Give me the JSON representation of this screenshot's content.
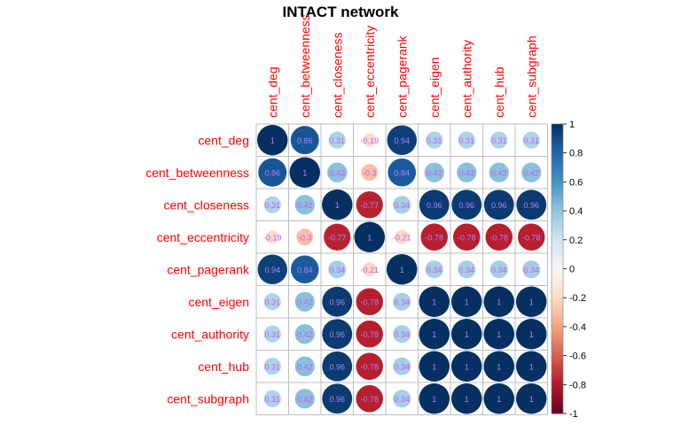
{
  "chart_data": {
    "type": "heatmap",
    "title": "INTACT network",
    "variables": [
      "cent_deg",
      "cent_betweenness",
      "cent_closeness",
      "cent_eccentricity",
      "cent_pagerank",
      "cent_eigen",
      "cent_authority",
      "cent_hub",
      "cent_subgraph"
    ],
    "matrix": [
      [
        1,
        0.86,
        0.31,
        -0.19,
        0.94,
        0.31,
        0.31,
        0.31,
        0.31
      ],
      [
        0.86,
        1,
        0.42,
        -0.3,
        0.84,
        0.42,
        0.42,
        0.42,
        0.42
      ],
      [
        0.31,
        0.42,
        1,
        -0.77,
        0.34,
        0.96,
        0.96,
        0.96,
        0.96
      ],
      [
        -0.19,
        -0.3,
        -0.77,
        1,
        -0.21,
        -0.78,
        -0.78,
        -0.78,
        -0.78
      ],
      [
        0.94,
        0.84,
        0.34,
        -0.21,
        1,
        0.34,
        0.34,
        0.34,
        0.34
      ],
      [
        0.31,
        0.42,
        0.96,
        -0.78,
        0.34,
        1,
        1,
        1,
        1
      ],
      [
        0.31,
        0.42,
        0.96,
        -0.78,
        0.34,
        1,
        1,
        1,
        1
      ],
      [
        0.31,
        0.42,
        0.96,
        -0.78,
        0.34,
        1,
        1,
        1,
        1
      ],
      [
        0.31,
        0.42,
        0.96,
        -0.78,
        0.34,
        1,
        1,
        1,
        1
      ]
    ],
    "method": "circle",
    "colorbar": {
      "range": [
        -1,
        1
      ],
      "ticks": [
        "-1",
        "-0.8",
        "-0.6",
        "-0.4",
        "-0.2",
        "0",
        "0.2",
        "0.4",
        "0.6",
        "0.8",
        "1"
      ]
    },
    "colors": {
      "label": "#ff0000",
      "value": "#cc55ff",
      "value_on_dark": "#b07cff",
      "grid": "#bebebe",
      "negative": "#67001f",
      "positive": "#053061"
    }
  }
}
